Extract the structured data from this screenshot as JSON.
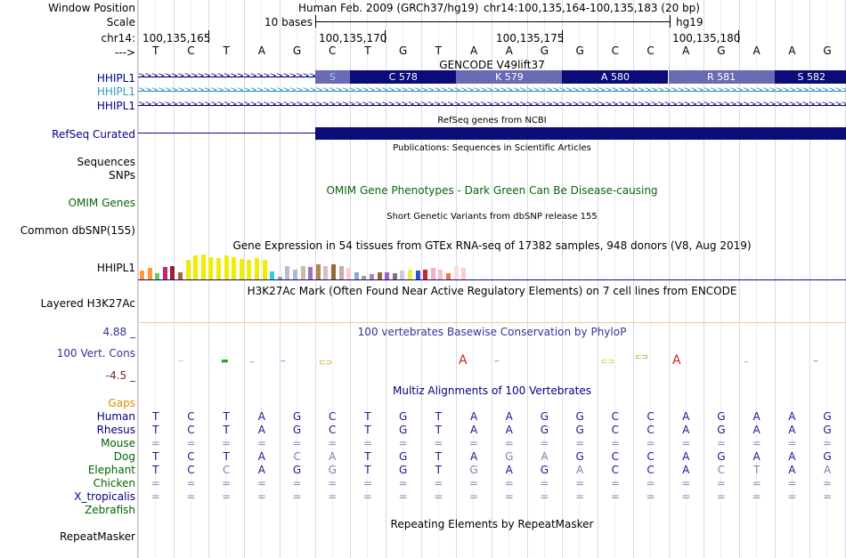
{
  "header": {
    "window_position_label": "Window Position",
    "scale_label": "Scale",
    "chrom_label": "chr14:",
    "strand_label": "--->",
    "assembly": "Human Feb. 2009 (GRCh37/hg19)",
    "position": "chr14:100,135,164-100,135,183 (20 bp)",
    "scale_text": "10 bases",
    "db": "hg19",
    "ticks": [
      "100,135,165",
      "100,135,170",
      "100,135,175",
      "100,135,180"
    ]
  },
  "sequence": [
    "T",
    "C",
    "T",
    "A",
    "G",
    "C",
    "T",
    "G",
    "T",
    "A",
    "A",
    "G",
    "G",
    "C",
    "C",
    "A",
    "G",
    "A",
    "A",
    "G"
  ],
  "tracks": {
    "gencode": {
      "title": "GENCODE V49lift37",
      "rows": [
        "HHIPL1",
        "HHIPL1",
        "HHIPL1"
      ],
      "codons": [
        {
          "label": "S",
          "shade": "light"
        },
        {
          "label": "C 578",
          "shade": "dark"
        },
        {
          "label": "K 579",
          "shade": "light"
        },
        {
          "label": "A 580",
          "shade": "dark"
        },
        {
          "label": "R 581",
          "shade": "light"
        },
        {
          "label": "S 582",
          "shade": "dark"
        }
      ]
    },
    "refseq": {
      "title": "RefSeq genes from NCBI",
      "label": "RefSeq Curated"
    },
    "publications": {
      "title": "Publications: Sequences in Scientific Articles",
      "label1": "Sequences",
      "label2": "SNPs"
    },
    "omim": {
      "title": "OMIM Gene Phenotypes - Dark Green Can Be Disease-causing",
      "label": "OMIM Genes"
    },
    "dbsnp": {
      "title": "Short Genetic Variants from dbSNP release 155",
      "label": "Common dbSNP(155)"
    },
    "gtex": {
      "title": "Gene Expression in 54 tissues from GTEx RNA-seq of 17382 samples, 948 donors (V8, Aug 2019)",
      "label": "HHIPL1",
      "bars": [
        {
          "v": 0.35,
          "c": "#ff9933"
        },
        {
          "v": 0.45,
          "c": "#ff9933"
        },
        {
          "v": 0.25,
          "c": "#66cc66"
        },
        {
          "v": 0.5,
          "c": "#cc2266"
        },
        {
          "v": 0.55,
          "c": "#992233"
        },
        {
          "v": 0.3,
          "c": "#aa6633"
        },
        {
          "v": 0.8,
          "c": "#eeee00"
        },
        {
          "v": 0.95,
          "c": "#eeee00"
        },
        {
          "v": 1.0,
          "c": "#eeee00"
        },
        {
          "v": 0.9,
          "c": "#eeee00"
        },
        {
          "v": 0.85,
          "c": "#eeee00"
        },
        {
          "v": 0.95,
          "c": "#eeee00"
        },
        {
          "v": 0.88,
          "c": "#eeee00"
        },
        {
          "v": 0.82,
          "c": "#eeee00"
        },
        {
          "v": 0.78,
          "c": "#eeee00"
        },
        {
          "v": 0.84,
          "c": "#eeee00"
        },
        {
          "v": 0.8,
          "c": "#eeee00"
        },
        {
          "v": 0.32,
          "c": "#33ccdd"
        },
        {
          "v": 0.12,
          "c": "#9999aa"
        },
        {
          "v": 0.55,
          "c": "#bbbbcc"
        },
        {
          "v": 0.4,
          "c": "#aabbcc"
        },
        {
          "v": 0.55,
          "c": "#ccbbaa"
        },
        {
          "v": 0.5,
          "c": "#9977aa"
        },
        {
          "v": 0.6,
          "c": "#aa8855"
        },
        {
          "v": 0.55,
          "c": "#ddbbbb"
        },
        {
          "v": 0.6,
          "c": "#996633"
        },
        {
          "v": 0.55,
          "c": "#ccaaaa"
        },
        {
          "v": 0.45,
          "c": "#ffcccc"
        },
        {
          "v": 0.3,
          "c": "#88aacc"
        },
        {
          "v": 0.15,
          "c": "#bb9966"
        },
        {
          "v": 0.2,
          "c": "#aa88bb"
        },
        {
          "v": 0.3,
          "c": "#996633"
        },
        {
          "v": 0.3,
          "c": "#9966cc"
        },
        {
          "v": 0.25,
          "c": "#777777"
        },
        {
          "v": 0.35,
          "c": "#ccccdd"
        },
        {
          "v": 0.4,
          "c": "#eeee44"
        },
        {
          "v": 0.35,
          "c": "#3355cc"
        },
        {
          "v": 0.4,
          "c": "#cc2233"
        },
        {
          "v": 0.45,
          "c": "#ffaacc"
        },
        {
          "v": 0.4,
          "c": "#ffbbcc"
        },
        {
          "v": 0.25,
          "c": "#ee7744"
        },
        {
          "v": 0.55,
          "c": "#ffdddd"
        },
        {
          "v": 0.45,
          "c": "#ffcccc"
        }
      ]
    },
    "h3k27ac": {
      "title": "H3K27Ac Mark (Often Found Near Active Regulatory Elements) on 7 cell lines from ENCODE",
      "label": "Layered H3K27Ac"
    },
    "cons": {
      "title": "100 vertebrates Basewise Conservation by PhyloP",
      "label": "100 Vert. Cons",
      "max": "4.88 _",
      "min": "-4.5 _"
    },
    "multiz": {
      "title": "Multiz Alignments of 100 Vertebrates",
      "gaps_label": "Gaps",
      "species": [
        {
          "name": "Human",
          "color": "#000080",
          "seq": [
            "T",
            "C",
            "T",
            "A",
            "G",
            "C",
            "T",
            "G",
            "T",
            "A",
            "A",
            "G",
            "G",
            "C",
            "C",
            "A",
            "G",
            "A",
            "A",
            "G"
          ]
        },
        {
          "name": "Rhesus",
          "color": "#000080",
          "seq": [
            "T",
            "C",
            "T",
            "A",
            "G",
            "C",
            "T",
            "G",
            "T",
            "A",
            "A",
            "G",
            "G",
            "C",
            "C",
            "A",
            "G",
            "A",
            "A",
            "G"
          ]
        },
        {
          "name": "Mouse",
          "color": "#006400",
          "seq": [
            "=",
            "=",
            "=",
            "=",
            "=",
            "=",
            "=",
            "=",
            "=",
            "=",
            "=",
            "=",
            "=",
            "=",
            "=",
            "=",
            "=",
            "=",
            "=",
            "="
          ]
        },
        {
          "name": "Dog",
          "color": "#006400",
          "seq": [
            "T",
            "C",
            "T",
            "A",
            "C",
            "A",
            "T",
            "G",
            "T",
            "A",
            "G",
            "A",
            "G",
            "C",
            "C",
            "A",
            "G",
            "A",
            "A",
            "G"
          ]
        },
        {
          "name": "Elephant",
          "color": "#006400",
          "seq": [
            "T",
            "C",
            "C",
            "A",
            "G",
            "G",
            "T",
            "G",
            "T",
            "G",
            "A",
            "G",
            "A",
            "C",
            "C",
            "A",
            "C",
            "T",
            "A",
            "A"
          ]
        },
        {
          "name": "Chicken",
          "color": "#006400",
          "seq": [
            "=",
            "=",
            "=",
            "=",
            "=",
            "=",
            "=",
            "=",
            "=",
            "=",
            "=",
            "=",
            "=",
            "=",
            "=",
            "=",
            "=",
            "=",
            "=",
            "="
          ]
        },
        {
          "name": "X_tropicalis",
          "color": "#000080",
          "seq": [
            "=",
            "=",
            "=",
            "=",
            "=",
            "=",
            "=",
            "=",
            "=",
            "=",
            "=",
            "=",
            "=",
            "=",
            "=",
            "=",
            "=",
            "=",
            "=",
            "="
          ]
        },
        {
          "name": "Zebrafish",
          "color": "#006400",
          "seq": [
            "",
            "",
            "",
            "",
            "",
            "",
            "",
            "",
            "",
            "",
            "",
            "",
            "",
            "",
            "",
            "",
            "",
            "",
            "",
            ""
          ]
        }
      ]
    },
    "repeatmasker": {
      "title": "Repeating Elements by RepeatMasker",
      "label": "RepeatMasker"
    }
  },
  "colors": {
    "navy": "#0c0c78",
    "light_codon": "#6a6ab4",
    "dark_codon": "#0c0c78",
    "omim_green": "#0a640a",
    "cons_blue": "#333399",
    "gaps_orange": "#e08a00"
  }
}
